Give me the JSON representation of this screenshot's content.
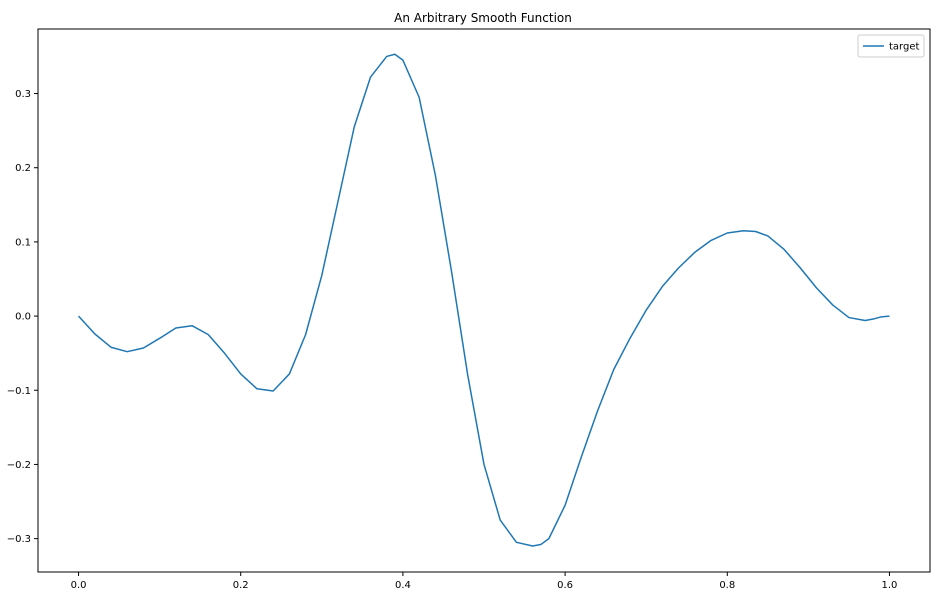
{
  "chart_data": {
    "type": "line",
    "title": "An Arbitrary Smooth Function",
    "xlabel": "",
    "ylabel": "",
    "xlim": [
      -0.05,
      1.05
    ],
    "ylim": [
      -0.345,
      0.387
    ],
    "xticks": [
      0.0,
      0.2,
      0.4,
      0.6,
      0.8,
      1.0
    ],
    "xtick_labels": [
      "0.0",
      "0.2",
      "0.4",
      "0.6",
      "0.8",
      "1.0"
    ],
    "yticks": [
      -0.3,
      -0.2,
      -0.1,
      0.0,
      0.1,
      0.2,
      0.3
    ],
    "ytick_labels": [
      "−0.3",
      "−0.2",
      "−0.1",
      "0.0",
      "0.1",
      "0.2",
      "0.3"
    ],
    "grid": false,
    "legend_position": "top-right",
    "series": [
      {
        "name": "target",
        "color": "#1f77b4",
        "x": [
          0.0,
          0.02,
          0.04,
          0.06,
          0.08,
          0.1,
          0.12,
          0.14,
          0.16,
          0.18,
          0.2,
          0.22,
          0.24,
          0.26,
          0.28,
          0.3,
          0.32,
          0.34,
          0.36,
          0.38,
          0.39,
          0.4,
          0.42,
          0.44,
          0.46,
          0.48,
          0.5,
          0.52,
          0.54,
          0.56,
          0.57,
          0.58,
          0.6,
          0.62,
          0.64,
          0.66,
          0.68,
          0.7,
          0.72,
          0.74,
          0.76,
          0.78,
          0.8,
          0.82,
          0.835,
          0.85,
          0.87,
          0.89,
          0.91,
          0.93,
          0.95,
          0.97,
          0.98,
          0.99,
          1.0
        ],
        "y": [
          0.0,
          -0.024,
          -0.042,
          -0.048,
          -0.043,
          -0.03,
          -0.016,
          -0.013,
          -0.025,
          -0.05,
          -0.078,
          -0.098,
          -0.101,
          -0.078,
          -0.025,
          0.055,
          0.155,
          0.255,
          0.322,
          0.35,
          0.353,
          0.345,
          0.295,
          0.19,
          0.06,
          -0.08,
          -0.2,
          -0.275,
          -0.305,
          -0.31,
          -0.308,
          -0.3,
          -0.255,
          -0.19,
          -0.128,
          -0.072,
          -0.03,
          0.008,
          0.04,
          0.065,
          0.086,
          0.102,
          0.112,
          0.115,
          0.114,
          0.108,
          0.09,
          0.065,
          0.038,
          0.015,
          -0.002,
          -0.006,
          -0.004,
          -0.001,
          0.0
        ]
      }
    ]
  }
}
